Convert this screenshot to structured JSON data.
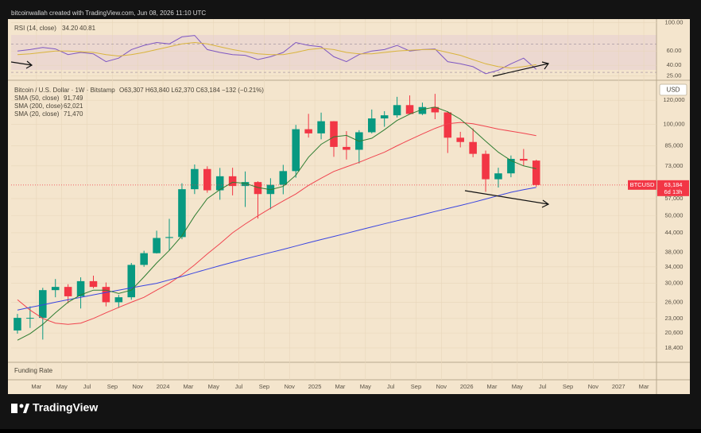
{
  "header": {
    "text": "bitcoinwallah created with TradingView.com, Jun 08, 2026 11:10 UTC"
  },
  "footer": {
    "brand": "TradingView"
  },
  "funding_pane": {
    "title": "Funding Rate"
  },
  "time_axis": {
    "xlim": [
      "2023-01",
      "2027-04"
    ],
    "xticks": [
      {
        "value": "2023-03",
        "label": "Mar"
      },
      {
        "value": "2023-05",
        "label": "May"
      },
      {
        "value": "2023-07",
        "label": "Jul"
      },
      {
        "value": "2023-09",
        "label": "Sep"
      },
      {
        "value": "2023-11",
        "label": "Nov"
      },
      {
        "value": "2024-01",
        "label": "2024"
      },
      {
        "value": "2024-03",
        "label": "Mar"
      },
      {
        "value": "2024-05",
        "label": "May"
      },
      {
        "value": "2024-07",
        "label": "Jul"
      },
      {
        "value": "2024-09",
        "label": "Sep"
      },
      {
        "value": "2024-11",
        "label": "Nov"
      },
      {
        "value": "2025-01",
        "label": "2025"
      },
      {
        "value": "2025-03",
        "label": "Mar"
      },
      {
        "value": "2025-05",
        "label": "May"
      },
      {
        "value": "2025-07",
        "label": "Jul"
      },
      {
        "value": "2025-09",
        "label": "Sep"
      },
      {
        "value": "2025-11",
        "label": "Nov"
      },
      {
        "value": "2026-01",
        "label": "2026"
      },
      {
        "value": "2026-03",
        "label": "Mar"
      },
      {
        "value": "2026-05",
        "label": "May"
      },
      {
        "value": "2026-07",
        "label": "Jul"
      },
      {
        "value": "2026-09",
        "label": "Sep"
      },
      {
        "value": "2026-11",
        "label": "Nov"
      },
      {
        "value": "2027-01",
        "label": "2027"
      },
      {
        "value": "2027-03",
        "label": "Mar"
      }
    ]
  },
  "chart_data": [
    {
      "type": "line",
      "title": "RSI (14, close)",
      "ylim": [
        20,
        105
      ],
      "yticks": [
        {
          "value": 100,
          "label": "100.00"
        },
        {
          "value": 60,
          "label": "60.00"
        },
        {
          "value": 40,
          "label": "40.00"
        },
        {
          "value": 25,
          "label": "25.00"
        }
      ],
      "bands": [
        30,
        70
      ],
      "x": [
        "2023-01",
        "2023-02",
        "2023-03",
        "2023-04",
        "2023-05",
        "2023-06",
        "2023-07",
        "2023-08",
        "2023-09",
        "2023-10",
        "2023-11",
        "2023-12",
        "2024-01",
        "2024-02",
        "2024-03",
        "2024-04",
        "2024-05",
        "2024-06",
        "2024-07",
        "2024-08",
        "2024-09",
        "2024-10",
        "2024-11",
        "2024-12",
        "2025-01",
        "2025-02",
        "2025-03",
        "2025-04",
        "2025-05",
        "2025-06",
        "2025-07",
        "2025-08",
        "2025-09",
        "2025-10",
        "2025-11",
        "2025-12",
        "2026-01",
        "2026-02",
        "2026-03",
        "2026-04",
        "2026-05",
        "2026-06"
      ],
      "series": [
        {
          "name": "RSI",
          "color": "#7e57c2",
          "legend_value": "34.20",
          "values": [
            60,
            62,
            65,
            63,
            55,
            58,
            56,
            45,
            50,
            62,
            68,
            72,
            70,
            80,
            82,
            62,
            58,
            55,
            54,
            48,
            52,
            58,
            72,
            68,
            66,
            52,
            45,
            55,
            60,
            62,
            68,
            60,
            62,
            63,
            45,
            42,
            38,
            28,
            33,
            42,
            50,
            34.2
          ]
        },
        {
          "name": "RSI MA",
          "color": "#d9b43c",
          "legend_value": "40.81",
          "values": [
            55,
            56,
            58,
            60,
            60,
            59,
            58,
            55,
            53,
            55,
            58,
            62,
            66,
            70,
            72,
            70,
            66,
            62,
            59,
            56,
            55,
            55,
            58,
            62,
            64,
            62,
            58,
            56,
            56,
            58,
            60,
            61,
            62,
            62,
            58,
            54,
            48,
            42,
            38,
            36,
            38,
            40.81
          ]
        }
      ]
    },
    {
      "type": "candlestick",
      "title": "Bitcoin / U.S. Dollar · 1W · Bitstamp",
      "subtitle": "O63,307 H63,840 L62,370 C63,184 −132 (−0.21%)",
      "y_axis_label": "USD",
      "log_scale": true,
      "ylim": [
        16600,
        138000
      ],
      "yticks": [
        {
          "value": 120000,
          "label": "120,000"
        },
        {
          "value": 100000,
          "label": "100,000"
        },
        {
          "value": 85000,
          "label": "85,000"
        },
        {
          "value": 73000,
          "label": "73,000"
        },
        {
          "value": 57000,
          "label": "57,000"
        },
        {
          "value": 50000,
          "label": "50,000"
        },
        {
          "value": 44000,
          "label": "44,000"
        },
        {
          "value": 38000,
          "label": "38,000"
        },
        {
          "value": 34000,
          "label": "34,000"
        },
        {
          "value": 30000,
          "label": "30,000"
        },
        {
          "value": 26000,
          "label": "26,000"
        },
        {
          "value": 23000,
          "label": "23,000"
        },
        {
          "value": 20600,
          "label": "20,600"
        },
        {
          "value": 18400,
          "label": "18,400"
        }
      ],
      "up_color": "#089981",
      "down_color": "#f23645",
      "last_price": {
        "symbol": "BTCUSD",
        "value": 63184,
        "label": "63,184",
        "countdown": "6d 13h",
        "color": "#f23645"
      },
      "x": [
        "2023-01",
        "2023-02",
        "2023-03",
        "2023-04",
        "2023-05",
        "2023-06",
        "2023-07",
        "2023-08",
        "2023-09",
        "2023-10",
        "2023-11",
        "2023-12",
        "2024-01",
        "2024-02",
        "2024-03",
        "2024-04",
        "2024-05",
        "2024-06",
        "2024-07",
        "2024-08",
        "2024-09",
        "2024-10",
        "2024-11",
        "2024-12",
        "2025-01",
        "2025-02",
        "2025-03",
        "2025-04",
        "2025-05",
        "2025-06",
        "2025-07",
        "2025-08",
        "2025-09",
        "2025-10",
        "2025-11",
        "2025-12",
        "2026-01",
        "2026-02",
        "2026-03",
        "2026-04",
        "2026-05",
        "2026-06"
      ],
      "open": [
        21000,
        23100,
        23100,
        28500,
        29200,
        27200,
        30500,
        29200,
        26000,
        27000,
        34500,
        37700,
        42300,
        42600,
        61200,
        71300,
        60700,
        67500,
        62700,
        64600,
        59000,
        63300,
        70200,
        96400,
        93400,
        102400,
        84300,
        82500,
        94200,
        104600,
        107100,
        115700,
        108200,
        114000,
        109500,
        90400,
        87500,
        80000,
        66000,
        69000,
        77000,
        76000
      ],
      "high": [
        23800,
        25200,
        29000,
        31000,
        29800,
        31400,
        31800,
        30200,
        27500,
        35000,
        38400,
        44700,
        48900,
        64000,
        73800,
        72800,
        71900,
        72000,
        70000,
        65000,
        66500,
        73600,
        99600,
        108300,
        109300,
        102500,
        95000,
        95700,
        111900,
        110500,
        123200,
        124500,
        117900,
        126000,
        110500,
        94500,
        97000,
        82000,
        72000,
        79000,
        83000,
        76500
      ],
      "low": [
        20500,
        21400,
        19600,
        27000,
        25800,
        24800,
        28900,
        25200,
        24900,
        26500,
        34000,
        37600,
        38500,
        41900,
        59000,
        59600,
        56500,
        58400,
        53500,
        49000,
        52600,
        58900,
        66800,
        90500,
        89300,
        78200,
        76600,
        74400,
        93400,
        98200,
        105300,
        108000,
        107300,
        104000,
        80500,
        84000,
        78000,
        60000,
        62000,
        67000,
        73000,
        62370
      ],
      "close": [
        23100,
        23100,
        28500,
        29200,
        27200,
        30500,
        29200,
        26000,
        27000,
        34500,
        37700,
        42300,
        42600,
        61200,
        71300,
        60700,
        67500,
        62700,
        64600,
        59000,
        63300,
        70200,
        96400,
        93400,
        102400,
        84300,
        82500,
        94200,
        104600,
        107100,
        115700,
        108200,
        114000,
        109500,
        90400,
        87500,
        80000,
        66000,
        69000,
        77000,
        76000,
        63184
      ],
      "series": [
        {
          "name": "SMA (50, close)",
          "color": "#f0444f",
          "legend_value": "91,749",
          "values": [
            26500,
            24500,
            23000,
            22200,
            22000,
            22200,
            23000,
            24000,
            25000,
            26000,
            27000,
            28500,
            30000,
            32000,
            34500,
            37500,
            40500,
            44000,
            47000,
            50000,
            53000,
            56000,
            59000,
            63000,
            66500,
            70000,
            72500,
            75000,
            78000,
            81000,
            85000,
            89000,
            93000,
            97000,
            100500,
            101500,
            100500,
            98500,
            96500,
            95000,
            93500,
            91749
          ]
        },
        {
          "name": "SMA (200, close)",
          "color": "#3a45e0",
          "legend_value": "62,021",
          "values": [
            24500,
            25000,
            25500,
            26000,
            26500,
            27000,
            27500,
            28000,
            28500,
            29000,
            29500,
            30000,
            30800,
            31600,
            32500,
            33400,
            34300,
            35200,
            36100,
            37000,
            37900,
            38800,
            39800,
            40800,
            41800,
            42800,
            43800,
            44900,
            46000,
            47100,
            48200,
            49300,
            50500,
            51700,
            52900,
            54100,
            55400,
            56800,
            58300,
            59800,
            61000,
            62021
          ]
        },
        {
          "name": "SMA (20, close)",
          "color": "#2e7d32",
          "legend_value": "71,470",
          "values": [
            19500,
            20500,
            22000,
            24000,
            26000,
            27500,
            28500,
            28500,
            27800,
            28500,
            31500,
            35000,
            38500,
            43000,
            50000,
            57000,
            61000,
            64500,
            64000,
            62000,
            61000,
            62500,
            68000,
            78000,
            86000,
            91000,
            92000,
            88000,
            90000,
            96000,
            103000,
            108000,
            112000,
            114000,
            110000,
            104000,
            96000,
            88000,
            81000,
            76000,
            73000,
            71470
          ]
        }
      ]
    }
  ]
}
